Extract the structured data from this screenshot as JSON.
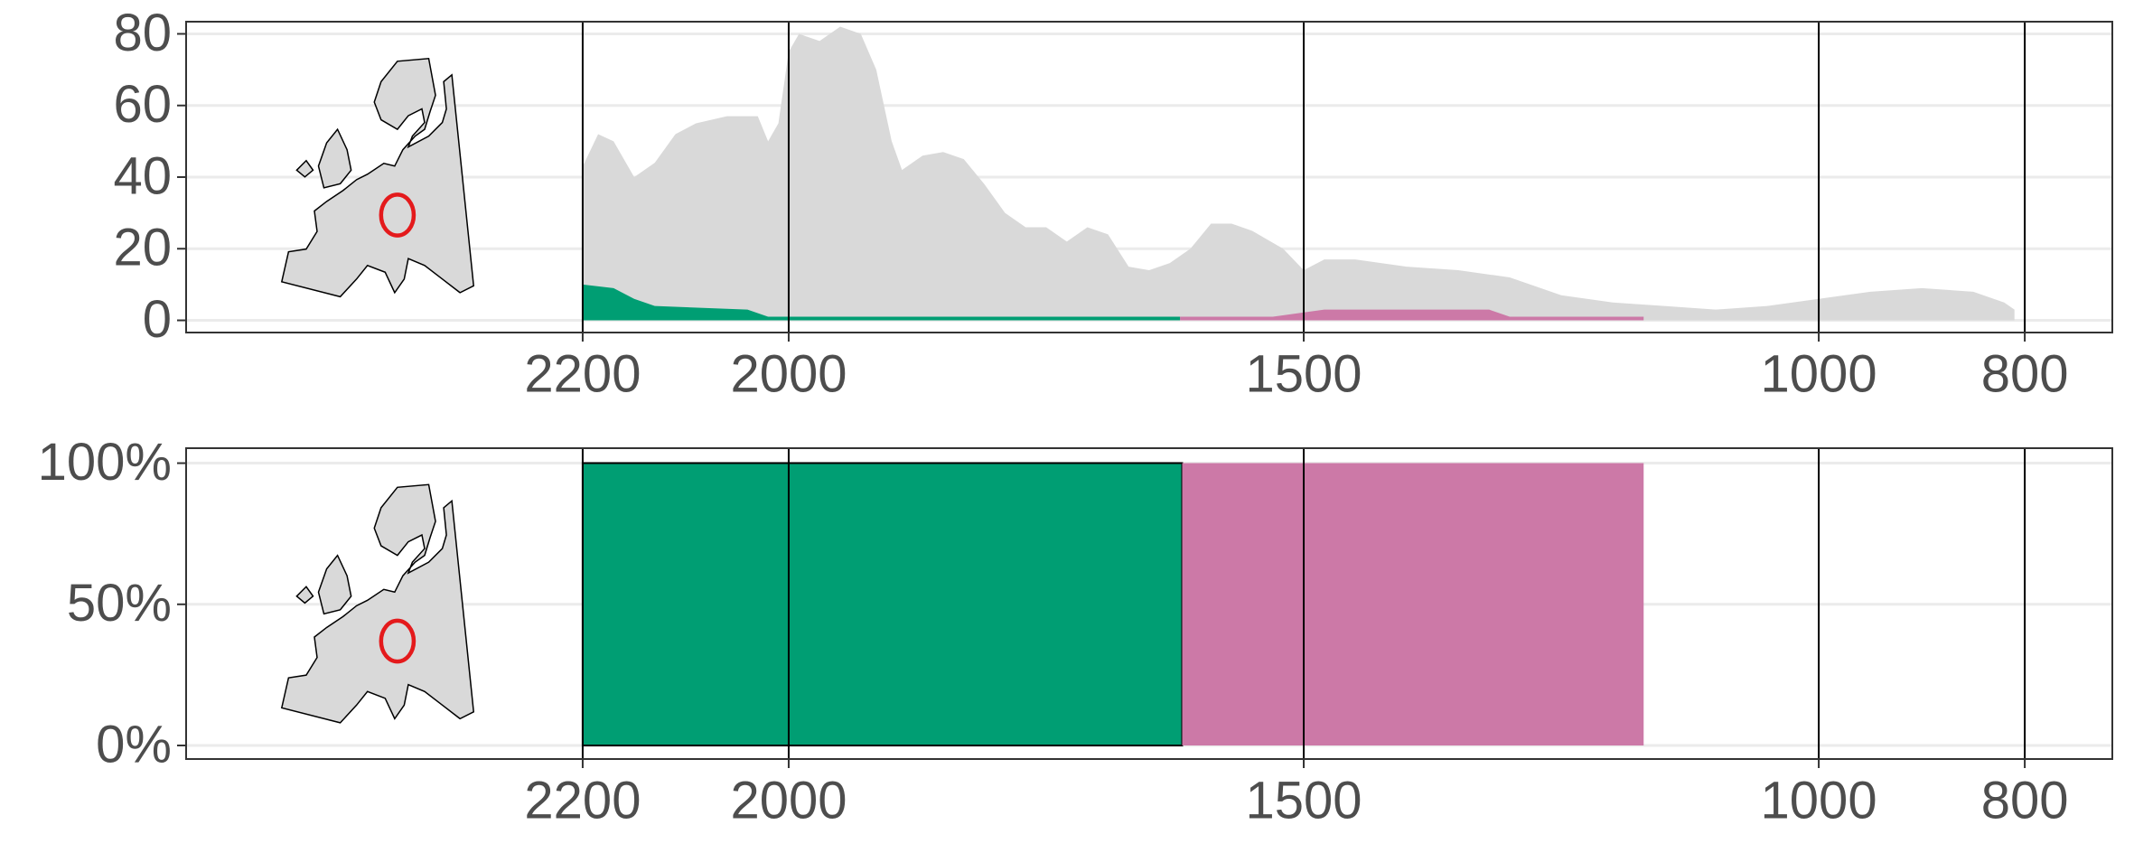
{
  "chart_data": [
    {
      "type": "area",
      "xlim": [
        2585,
        715
      ],
      "xticks": [
        2200,
        2000,
        1500,
        1000,
        800
      ],
      "ylim": [
        -3.4,
        83.4
      ],
      "yticks": [
        0,
        20,
        40,
        60,
        80
      ],
      "grid": true,
      "series": [
        {
          "color": "#d9d9d9",
          "x": [
            2200,
            2185,
            2170,
            2150,
            2130,
            2110,
            2090,
            2060,
            2030,
            2020,
            2010,
            2000,
            1990,
            1970,
            1950,
            1930,
            1915,
            1900,
            1890,
            1870,
            1850,
            1830,
            1810,
            1790,
            1770,
            1750,
            1730,
            1710,
            1690,
            1670,
            1650,
            1630,
            1610,
            1590,
            1570,
            1550,
            1520,
            1500,
            1480,
            1450,
            1400,
            1350,
            1300,
            1280,
            1250,
            1200,
            1150,
            1100,
            1050,
            1000,
            950,
            900,
            850,
            820,
            810
          ],
          "values": [
            43,
            52,
            50,
            40,
            44,
            52,
            55,
            57,
            57,
            50,
            55,
            75,
            80,
            78,
            82,
            80,
            70,
            50,
            42,
            46,
            47,
            45,
            38,
            30,
            26,
            26,
            22,
            26,
            24,
            15,
            14,
            16,
            20,
            27,
            27,
            25,
            20,
            14,
            17,
            17,
            15,
            14,
            12,
            10,
            7,
            5,
            4,
            3,
            4,
            6,
            8,
            9,
            8,
            5,
            3
          ]
        },
        {
          "color": "#009e73",
          "x": [
            2200,
            2170,
            2150,
            2130,
            2040,
            2020,
            1620
          ],
          "values": [
            10,
            9,
            6,
            4,
            3,
            1,
            1
          ]
        },
        {
          "color": "#cc79a7",
          "x": [
            1620,
            1530,
            1480,
            1320,
            1300,
            1170
          ],
          "values": [
            1,
            1,
            3,
            3,
            1,
            1
          ]
        }
      ]
    },
    {
      "type": "area",
      "xlim": [
        2585,
        715
      ],
      "xticks": [
        2200,
        2000,
        1500,
        1000,
        800
      ],
      "ylim": [
        -4.8,
        105.3
      ],
      "yticks": [
        {
          "value": 0,
          "label": "0%"
        },
        {
          "value": 50,
          "label": "50%"
        },
        {
          "value": 100,
          "label": "100%"
        }
      ],
      "grid": true,
      "series": [
        {
          "color": "#009e73",
          "outline": "#000000",
          "x": [
            2200,
            1618
          ],
          "values": [
            100,
            100
          ]
        },
        {
          "color": "#cc79a7",
          "x": [
            1618,
            1170
          ],
          "values": [
            100,
            100
          ]
        }
      ]
    }
  ]
}
